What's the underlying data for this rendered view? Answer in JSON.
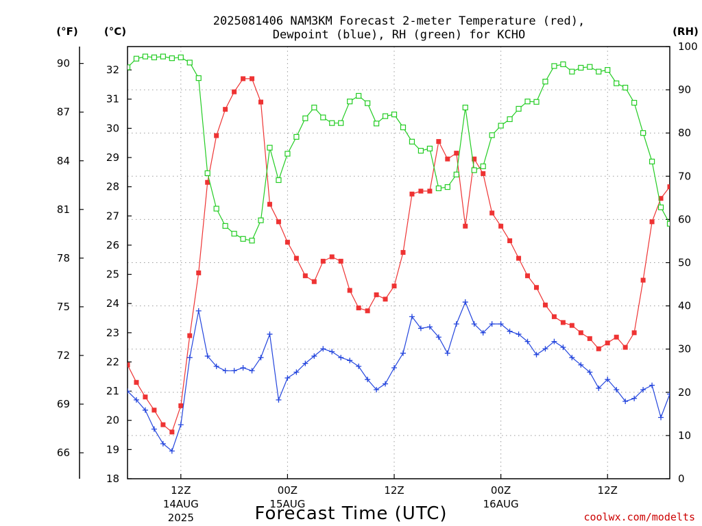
{
  "title_line1": "2025081406 NAM3KM Forecast 2-meter Temperature (red),",
  "title_line2": "Dewpoint (blue), RH (green) for KCHO",
  "unit_f": "(°F)",
  "unit_c": "(°C)",
  "unit_rh": "(RH)",
  "x_title": "Forecast Time (UTC)",
  "credit": "coolwx.com/modelts",
  "colors": {
    "temperature": "#ee3333",
    "dewpoint": "#2244dd",
    "rh": "#22cc22",
    "credit": "#cc0000"
  },
  "chart_data": {
    "type": "line",
    "x_unit": "forecast hour from 2025081406",
    "xlim": [
      0,
      61
    ],
    "x_ticks": [
      {
        "x": 6,
        "label": "12Z",
        "date": "14AUG",
        "year": "2025"
      },
      {
        "x": 18,
        "label": "00Z",
        "date": "15AUG",
        "year": ""
      },
      {
        "x": 30,
        "label": "12Z",
        "date": "",
        "year": ""
      },
      {
        "x": 42,
        "label": "00Z",
        "date": "16AUG",
        "year": ""
      },
      {
        "x": 54,
        "label": "12Z",
        "date": "",
        "year": ""
      }
    ],
    "ylim_c": [
      18,
      32.8
    ],
    "yticks_c": [
      18,
      19,
      20,
      21,
      22,
      23,
      24,
      25,
      26,
      27,
      28,
      29,
      30,
      31,
      32
    ],
    "ylim_f": [
      64.4,
      91.04
    ],
    "yticks_f": [
      66,
      69,
      72,
      75,
      78,
      81,
      84,
      87,
      90
    ],
    "ylim_rh": [
      0,
      100
    ],
    "yticks_rh": [
      0,
      10,
      20,
      30,
      40,
      50,
      60,
      70,
      80,
      90,
      100
    ],
    "grid": true,
    "x": [
      0,
      1,
      2,
      3,
      4,
      5,
      6,
      7,
      8,
      9,
      10,
      11,
      12,
      13,
      14,
      15,
      16,
      17,
      18,
      19,
      20,
      21,
      22,
      23,
      24,
      25,
      26,
      27,
      28,
      29,
      30,
      31,
      32,
      33,
      34,
      35,
      36,
      37,
      38,
      39,
      40,
      41,
      42,
      43,
      44,
      45,
      46,
      47,
      48,
      49,
      50,
      51,
      52,
      53,
      54,
      55,
      56,
      57,
      58,
      59,
      60,
      61
    ],
    "series": [
      {
        "name": "Temperature",
        "axis": "celsius",
        "marker": "square-filled",
        "values": [
          21.9,
          21.3,
          20.8,
          20.35,
          19.85,
          19.6,
          20.5,
          22.9,
          25.05,
          28.15,
          29.75,
          30.65,
          31.25,
          31.7,
          31.7,
          30.9,
          27.4,
          26.8,
          26.1,
          25.55,
          24.95,
          24.75,
          25.45,
          25.6,
          25.45,
          24.45,
          23.85,
          23.75,
          24.3,
          24.15,
          24.6,
          25.75,
          27.75,
          27.85,
          27.85,
          29.55,
          28.95,
          29.15,
          26.65,
          28.95,
          28.45,
          27.1,
          26.65,
          26.15,
          25.55,
          24.95,
          24.55,
          23.95,
          23.55,
          23.35,
          23.25,
          23.0,
          22.8,
          22.45,
          22.65,
          22.85,
          22.5,
          23.0,
          24.8,
          26.8,
          27.6,
          28.0
        ]
      },
      {
        "name": "Dewpoint",
        "axis": "celsius",
        "marker": "plus",
        "values": [
          21.0,
          20.7,
          20.35,
          19.7,
          19.2,
          18.95,
          19.85,
          22.15,
          23.75,
          22.2,
          21.85,
          21.7,
          21.7,
          21.8,
          21.7,
          22.15,
          22.95,
          20.7,
          21.45,
          21.65,
          21.95,
          22.2,
          22.45,
          22.35,
          22.15,
          22.05,
          21.85,
          21.4,
          21.05,
          21.25,
          21.8,
          22.3,
          23.55,
          23.15,
          23.2,
          22.85,
          22.3,
          23.3,
          24.05,
          23.3,
          23.0,
          23.3,
          23.3,
          23.05,
          22.95,
          22.7,
          22.25,
          22.45,
          22.7,
          22.5,
          22.15,
          21.9,
          21.65,
          21.1,
          21.4,
          21.05,
          20.65,
          20.75,
          21.05,
          21.2,
          20.1,
          20.9
        ]
      },
      {
        "name": "RH",
        "axis": "rh",
        "marker": "square-open",
        "values": [
          95.2,
          97.2,
          97.7,
          97.5,
          97.7,
          97.3,
          97.5,
          96.3,
          92.7,
          70.7,
          62.5,
          58.5,
          56.7,
          55.5,
          55.1,
          59.8,
          76.6,
          69.1,
          75.2,
          79.1,
          83.4,
          85.9,
          83.6,
          82.3,
          82.3,
          87.3,
          88.6,
          86.9,
          82.2,
          83.9,
          84.3,
          81.3,
          78.0,
          75.9,
          76.4,
          67.2,
          67.5,
          70.4,
          85.9,
          71.4,
          72.3,
          79.5,
          81.7,
          83.2,
          85.6,
          87.3,
          87.2,
          91.9,
          95.5,
          95.9,
          94.2,
          95.1,
          95.3,
          94.2,
          94.6,
          91.5,
          90.5,
          87.0,
          80.0,
          73.4,
          62.8,
          59.0
        ]
      }
    ]
  }
}
